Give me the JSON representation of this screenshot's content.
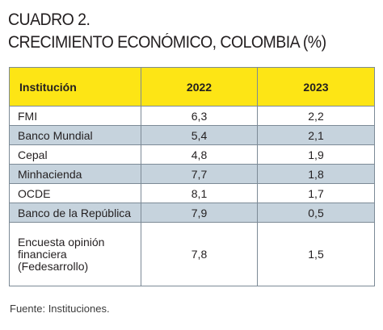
{
  "title": {
    "line1": "CUADRO 2.",
    "line2": "CRECIMIENTO ECONÓMICO, COLOMBIA (%)"
  },
  "table": {
    "headers": [
      "Institución",
      "2022",
      "2023"
    ],
    "rows": [
      {
        "institucion": "FMI",
        "y2022": "6,3",
        "y2023": "2,2"
      },
      {
        "institucion": "Banco Mundial",
        "y2022": "5,4",
        "y2023": "2,1"
      },
      {
        "institucion": "Cepal",
        "y2022": "4,8",
        "y2023": "1,9"
      },
      {
        "institucion": "Minhacienda",
        "y2022": "7,7",
        "y2023": "1,8"
      },
      {
        "institucion": "OCDE",
        "y2022": "8,1",
        "y2023": "1,7"
      },
      {
        "institucion": "Banco de la República",
        "y2022": "7,9",
        "y2023": "0,5"
      },
      {
        "institucion": "Encuesta opinión financiera (Fedesarrollo)",
        "y2022": "7,8",
        "y2023": "1,5"
      }
    ]
  },
  "footer": "Fuente: Instituciones.",
  "colors": {
    "header_bg": "#fde515",
    "alt_row_bg": "#c6d3dd",
    "border": "#7c8a96"
  }
}
